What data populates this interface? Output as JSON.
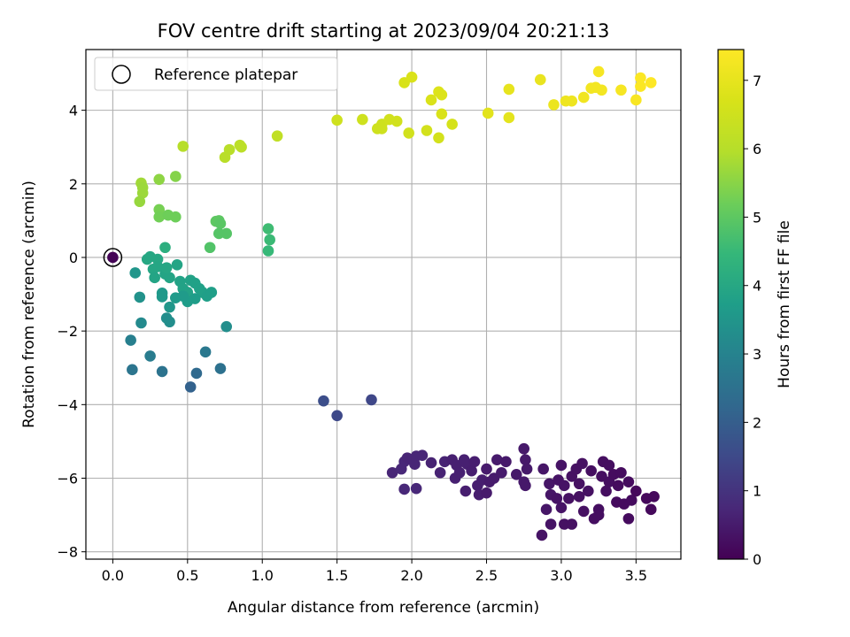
{
  "chart_data": {
    "type": "scatter",
    "title": "FOV centre drift starting at 2023/09/04 20:21:13",
    "xlabel": "Angular distance from reference (arcmin)",
    "ylabel": "Rotation from reference (arcmin)",
    "xlim": [
      -0.18,
      3.8
    ],
    "ylim": [
      -8.2,
      5.65
    ],
    "xticks": [
      0.0,
      0.5,
      1.0,
      1.5,
      2.0,
      2.5,
      3.0,
      3.5
    ],
    "xtick_labels": [
      "0.0",
      "0.5",
      "1.0",
      "1.5",
      "2.0",
      "2.5",
      "3.0",
      "3.5"
    ],
    "yticks": [
      -8,
      -6,
      -4,
      -2,
      0,
      2,
      4
    ],
    "ytick_labels": [
      "−8",
      "−6",
      "−4",
      "−2",
      "0",
      "2",
      "4"
    ],
    "grid": true,
    "legend": {
      "position": "top-left",
      "entries": [
        "Reference platepar"
      ]
    },
    "colorbar": {
      "label": "Hours from first FF file",
      "colormap": "viridis",
      "range": [
        0,
        7.45
      ],
      "ticks": [
        0,
        1,
        2,
        3,
        4,
        5,
        6,
        7
      ],
      "tick_labels": [
        "0",
        "1",
        "2",
        "3",
        "4",
        "5",
        "6",
        "7"
      ]
    },
    "reference_point": {
      "x": 0.0,
      "y": 0.0,
      "hours": 0.05
    },
    "points": [
      {
        "x": 1.95,
        "y": 4.75,
        "hours": 6.7
      },
      {
        "x": 2.0,
        "y": 4.9,
        "hours": 6.75
      },
      {
        "x": 2.18,
        "y": 4.5,
        "hours": 6.8
      },
      {
        "x": 2.2,
        "y": 4.42,
        "hours": 6.78
      },
      {
        "x": 2.13,
        "y": 4.28,
        "hours": 6.75
      },
      {
        "x": 2.2,
        "y": 3.9,
        "hours": 6.72
      },
      {
        "x": 2.27,
        "y": 3.62,
        "hours": 6.65
      },
      {
        "x": 2.51,
        "y": 3.92,
        "hours": 6.9
      },
      {
        "x": 2.65,
        "y": 4.57,
        "hours": 7.0
      },
      {
        "x": 2.65,
        "y": 3.8,
        "hours": 6.95
      },
      {
        "x": 2.86,
        "y": 4.83,
        "hours": 7.05
      },
      {
        "x": 2.95,
        "y": 4.15,
        "hours": 7.1
      },
      {
        "x": 3.03,
        "y": 4.25,
        "hours": 7.15
      },
      {
        "x": 3.07,
        "y": 4.25,
        "hours": 7.15
      },
      {
        "x": 3.15,
        "y": 4.35,
        "hours": 7.2
      },
      {
        "x": 3.2,
        "y": 4.6,
        "hours": 7.25
      },
      {
        "x": 3.23,
        "y": 4.62,
        "hours": 7.25
      },
      {
        "x": 3.27,
        "y": 4.55,
        "hours": 7.25
      },
      {
        "x": 3.25,
        "y": 5.05,
        "hours": 7.3
      },
      {
        "x": 3.4,
        "y": 4.55,
        "hours": 7.3
      },
      {
        "x": 3.5,
        "y": 4.28,
        "hours": 7.35
      },
      {
        "x": 3.53,
        "y": 4.88,
        "hours": 7.4
      },
      {
        "x": 3.53,
        "y": 4.65,
        "hours": 7.4
      },
      {
        "x": 3.6,
        "y": 4.75,
        "hours": 7.45
      },
      {
        "x": 1.5,
        "y": 3.73,
        "hours": 6.5
      },
      {
        "x": 1.67,
        "y": 3.75,
        "hours": 6.5
      },
      {
        "x": 1.77,
        "y": 3.5,
        "hours": 6.5
      },
      {
        "x": 1.8,
        "y": 3.62,
        "hours": 6.5
      },
      {
        "x": 1.8,
        "y": 3.5,
        "hours": 6.5
      },
      {
        "x": 1.85,
        "y": 3.75,
        "hours": 6.55
      },
      {
        "x": 1.9,
        "y": 3.7,
        "hours": 6.55
      },
      {
        "x": 1.98,
        "y": 3.38,
        "hours": 6.55
      },
      {
        "x": 2.1,
        "y": 3.45,
        "hours": 6.6
      },
      {
        "x": 2.18,
        "y": 3.25,
        "hours": 6.6
      },
      {
        "x": 1.1,
        "y": 3.3,
        "hours": 6.2
      },
      {
        "x": 0.85,
        "y": 3.05,
        "hours": 6.1
      },
      {
        "x": 0.86,
        "y": 3.0,
        "hours": 6.1
      },
      {
        "x": 0.78,
        "y": 2.93,
        "hours": 6.05
      },
      {
        "x": 0.75,
        "y": 2.72,
        "hours": 6.05
      },
      {
        "x": 0.47,
        "y": 3.02,
        "hours": 6.0
      },
      {
        "x": 0.19,
        "y": 2.02,
        "hours": 5.75
      },
      {
        "x": 0.2,
        "y": 1.9,
        "hours": 5.7
      },
      {
        "x": 0.2,
        "y": 1.75,
        "hours": 5.7
      },
      {
        "x": 0.18,
        "y": 1.52,
        "hours": 5.65
      },
      {
        "x": 0.31,
        "y": 2.12,
        "hours": 5.55
      },
      {
        "x": 0.42,
        "y": 2.2,
        "hours": 5.45
      },
      {
        "x": 0.31,
        "y": 1.3,
        "hours": 5.3
      },
      {
        "x": 0.31,
        "y": 1.1,
        "hours": 5.25
      },
      {
        "x": 0.37,
        "y": 1.15,
        "hours": 5.2
      },
      {
        "x": 0.42,
        "y": 1.1,
        "hours": 5.2
      },
      {
        "x": 0.69,
        "y": 0.98,
        "hours": 5.0
      },
      {
        "x": 0.71,
        "y": 1.0,
        "hours": 5.0
      },
      {
        "x": 0.72,
        "y": 0.92,
        "hours": 4.95
      },
      {
        "x": 0.71,
        "y": 0.65,
        "hours": 4.9
      },
      {
        "x": 0.76,
        "y": 0.65,
        "hours": 4.9
      },
      {
        "x": 0.65,
        "y": 0.27,
        "hours": 4.85
      },
      {
        "x": 1.04,
        "y": 0.78,
        "hours": 4.6
      },
      {
        "x": 1.05,
        "y": 0.48,
        "hours": 4.55
      },
      {
        "x": 1.04,
        "y": 0.18,
        "hours": 4.5
      },
      {
        "x": 0.35,
        "y": 0.27,
        "hours": 4.2
      },
      {
        "x": 0.23,
        "y": -0.05,
        "hours": 4.0
      },
      {
        "x": 0.25,
        "y": 0.02,
        "hours": 4.0
      },
      {
        "x": 0.3,
        "y": -0.05,
        "hours": 4.0
      },
      {
        "x": 0.27,
        "y": -0.32,
        "hours": 3.95
      },
      {
        "x": 0.3,
        "y": -0.25,
        "hours": 3.95
      },
      {
        "x": 0.35,
        "y": -0.45,
        "hours": 3.9
      },
      {
        "x": 0.38,
        "y": -0.55,
        "hours": 3.9
      },
      {
        "x": 0.43,
        "y": -0.2,
        "hours": 3.9
      },
      {
        "x": 0.45,
        "y": -0.65,
        "hours": 3.85
      },
      {
        "x": 0.47,
        "y": -0.85,
        "hours": 3.85
      },
      {
        "x": 0.5,
        "y": -0.95,
        "hours": 3.85
      },
      {
        "x": 0.52,
        "y": -0.62,
        "hours": 3.85
      },
      {
        "x": 0.55,
        "y": -0.7,
        "hours": 3.8
      },
      {
        "x": 0.58,
        "y": -0.85,
        "hours": 3.8
      },
      {
        "x": 0.6,
        "y": -0.95,
        "hours": 3.8
      },
      {
        "x": 0.63,
        "y": -1.05,
        "hours": 3.75
      },
      {
        "x": 0.66,
        "y": -0.95,
        "hours": 3.75
      },
      {
        "x": 0.55,
        "y": -1.12,
        "hours": 3.7
      },
      {
        "x": 0.5,
        "y": -1.2,
        "hours": 3.7
      },
      {
        "x": 0.47,
        "y": -1.05,
        "hours": 3.65
      },
      {
        "x": 0.42,
        "y": -1.1,
        "hours": 3.65
      },
      {
        "x": 0.33,
        "y": -0.97,
        "hours": 3.6
      },
      {
        "x": 0.33,
        "y": -1.07,
        "hours": 3.6
      },
      {
        "x": 0.38,
        "y": -1.35,
        "hours": 3.55
      },
      {
        "x": 0.28,
        "y": -0.55,
        "hours": 3.9
      },
      {
        "x": 0.36,
        "y": -0.28,
        "hours": 3.95
      },
      {
        "x": 0.15,
        "y": -0.42,
        "hours": 3.5
      },
      {
        "x": 0.18,
        "y": -1.08,
        "hours": 3.4
      },
      {
        "x": 0.36,
        "y": -1.65,
        "hours": 3.3
      },
      {
        "x": 0.38,
        "y": -1.75,
        "hours": 3.3
      },
      {
        "x": 0.19,
        "y": -1.78,
        "hours": 3.2
      },
      {
        "x": 0.76,
        "y": -1.88,
        "hours": 3.3
      },
      {
        "x": 0.12,
        "y": -2.25,
        "hours": 2.9
      },
      {
        "x": 0.25,
        "y": -2.68,
        "hours": 2.8
      },
      {
        "x": 0.62,
        "y": -2.57,
        "hours": 2.7
      },
      {
        "x": 0.13,
        "y": -3.05,
        "hours": 2.6
      },
      {
        "x": 0.33,
        "y": -3.1,
        "hours": 2.55
      },
      {
        "x": 0.72,
        "y": -3.02,
        "hours": 2.5
      },
      {
        "x": 0.56,
        "y": -3.15,
        "hours": 2.3
      },
      {
        "x": 0.52,
        "y": -3.52,
        "hours": 2.1
      },
      {
        "x": 1.41,
        "y": -3.9,
        "hours": 1.6
      },
      {
        "x": 1.5,
        "y": -4.3,
        "hours": 1.5
      },
      {
        "x": 1.73,
        "y": -3.87,
        "hours": 1.45
      },
      {
        "x": 1.87,
        "y": -5.85,
        "hours": 0.7
      },
      {
        "x": 1.93,
        "y": -5.75,
        "hours": 0.75
      },
      {
        "x": 1.95,
        "y": -5.55,
        "hours": 0.75
      },
      {
        "x": 1.97,
        "y": -5.45,
        "hours": 0.7
      },
      {
        "x": 2.0,
        "y": -5.5,
        "hours": 0.7
      },
      {
        "x": 2.03,
        "y": -5.4,
        "hours": 0.7
      },
      {
        "x": 2.07,
        "y": -5.38,
        "hours": 0.7
      },
      {
        "x": 2.02,
        "y": -5.62,
        "hours": 0.7
      },
      {
        "x": 1.95,
        "y": -6.3,
        "hours": 0.75
      },
      {
        "x": 2.03,
        "y": -6.28,
        "hours": 0.75
      },
      {
        "x": 2.13,
        "y": -5.58,
        "hours": 0.65
      },
      {
        "x": 2.19,
        "y": -5.85,
        "hours": 0.65
      },
      {
        "x": 2.22,
        "y": -5.55,
        "hours": 0.65
      },
      {
        "x": 2.27,
        "y": -5.5,
        "hours": 0.6
      },
      {
        "x": 2.3,
        "y": -5.65,
        "hours": 0.6
      },
      {
        "x": 2.29,
        "y": -6.0,
        "hours": 0.6
      },
      {
        "x": 2.32,
        "y": -5.85,
        "hours": 0.6
      },
      {
        "x": 2.35,
        "y": -5.5,
        "hours": 0.6
      },
      {
        "x": 2.37,
        "y": -5.62,
        "hours": 0.6
      },
      {
        "x": 2.36,
        "y": -6.35,
        "hours": 0.55
      },
      {
        "x": 2.4,
        "y": -5.8,
        "hours": 0.55
      },
      {
        "x": 2.42,
        "y": -5.55,
        "hours": 0.55
      },
      {
        "x": 2.44,
        "y": -6.2,
        "hours": 0.55
      },
      {
        "x": 2.45,
        "y": -6.45,
        "hours": 0.55
      },
      {
        "x": 2.47,
        "y": -6.05,
        "hours": 0.55
      },
      {
        "x": 2.5,
        "y": -5.75,
        "hours": 0.5
      },
      {
        "x": 2.52,
        "y": -6.1,
        "hours": 0.5
      },
      {
        "x": 2.5,
        "y": -6.4,
        "hours": 0.5
      },
      {
        "x": 2.55,
        "y": -6.0,
        "hours": 0.5
      },
      {
        "x": 2.57,
        "y": -5.5,
        "hours": 0.5
      },
      {
        "x": 2.6,
        "y": -5.85,
        "hours": 0.5
      },
      {
        "x": 2.63,
        "y": -5.55,
        "hours": 0.45
      },
      {
        "x": 2.7,
        "y": -5.9,
        "hours": 0.45
      },
      {
        "x": 2.75,
        "y": -5.2,
        "hours": 0.45
      },
      {
        "x": 2.76,
        "y": -5.5,
        "hours": 0.45
      },
      {
        "x": 2.77,
        "y": -5.75,
        "hours": 0.45
      },
      {
        "x": 2.75,
        "y": -6.1,
        "hours": 0.45
      },
      {
        "x": 2.76,
        "y": -6.2,
        "hours": 0.45
      },
      {
        "x": 2.88,
        "y": -5.75,
        "hours": 0.4
      },
      {
        "x": 2.92,
        "y": -6.15,
        "hours": 0.4
      },
      {
        "x": 2.93,
        "y": -6.45,
        "hours": 0.4
      },
      {
        "x": 2.9,
        "y": -6.85,
        "hours": 0.4
      },
      {
        "x": 2.93,
        "y": -7.25,
        "hours": 0.35
      },
      {
        "x": 2.87,
        "y": -7.55,
        "hours": 0.35
      },
      {
        "x": 2.97,
        "y": -6.55,
        "hours": 0.35
      },
      {
        "x": 2.98,
        "y": -6.05,
        "hours": 0.35
      },
      {
        "x": 3.0,
        "y": -5.65,
        "hours": 0.35
      },
      {
        "x": 3.02,
        "y": -6.2,
        "hours": 0.35
      },
      {
        "x": 3.0,
        "y": -6.8,
        "hours": 0.35
      },
      {
        "x": 3.02,
        "y": -7.25,
        "hours": 0.3
      },
      {
        "x": 3.05,
        "y": -6.55,
        "hours": 0.3
      },
      {
        "x": 3.07,
        "y": -5.95,
        "hours": 0.3
      },
      {
        "x": 3.07,
        "y": -7.25,
        "hours": 0.3
      },
      {
        "x": 3.1,
        "y": -5.75,
        "hours": 0.3
      },
      {
        "x": 3.12,
        "y": -6.15,
        "hours": 0.3
      },
      {
        "x": 3.12,
        "y": -6.5,
        "hours": 0.3
      },
      {
        "x": 3.14,
        "y": -5.6,
        "hours": 0.3
      },
      {
        "x": 3.15,
        "y": -6.9,
        "hours": 0.3
      },
      {
        "x": 3.18,
        "y": -6.35,
        "hours": 0.3
      },
      {
        "x": 3.2,
        "y": -5.8,
        "hours": 0.25
      },
      {
        "x": 3.22,
        "y": -7.1,
        "hours": 0.25
      },
      {
        "x": 3.25,
        "y": -6.85,
        "hours": 0.25
      },
      {
        "x": 3.25,
        "y": -7.0,
        "hours": 0.25
      },
      {
        "x": 3.27,
        "y": -5.95,
        "hours": 0.25
      },
      {
        "x": 3.28,
        "y": -5.55,
        "hours": 0.25
      },
      {
        "x": 3.3,
        "y": -6.35,
        "hours": 0.25
      },
      {
        "x": 3.32,
        "y": -5.65,
        "hours": 0.25
      },
      {
        "x": 3.32,
        "y": -6.1,
        "hours": 0.25
      },
      {
        "x": 3.35,
        "y": -5.9,
        "hours": 0.2
      },
      {
        "x": 3.37,
        "y": -6.65,
        "hours": 0.2
      },
      {
        "x": 3.38,
        "y": -6.2,
        "hours": 0.2
      },
      {
        "x": 3.4,
        "y": -5.85,
        "hours": 0.2
      },
      {
        "x": 3.42,
        "y": -6.7,
        "hours": 0.2
      },
      {
        "x": 3.45,
        "y": -6.1,
        "hours": 0.2
      },
      {
        "x": 3.45,
        "y": -7.1,
        "hours": 0.2
      },
      {
        "x": 3.47,
        "y": -6.6,
        "hours": 0.2
      },
      {
        "x": 3.5,
        "y": -6.35,
        "hours": 0.15
      },
      {
        "x": 3.57,
        "y": -6.55,
        "hours": 0.15
      },
      {
        "x": 3.6,
        "y": -6.85,
        "hours": 0.15
      },
      {
        "x": 3.62,
        "y": -6.5,
        "hours": 0.15
      }
    ]
  }
}
